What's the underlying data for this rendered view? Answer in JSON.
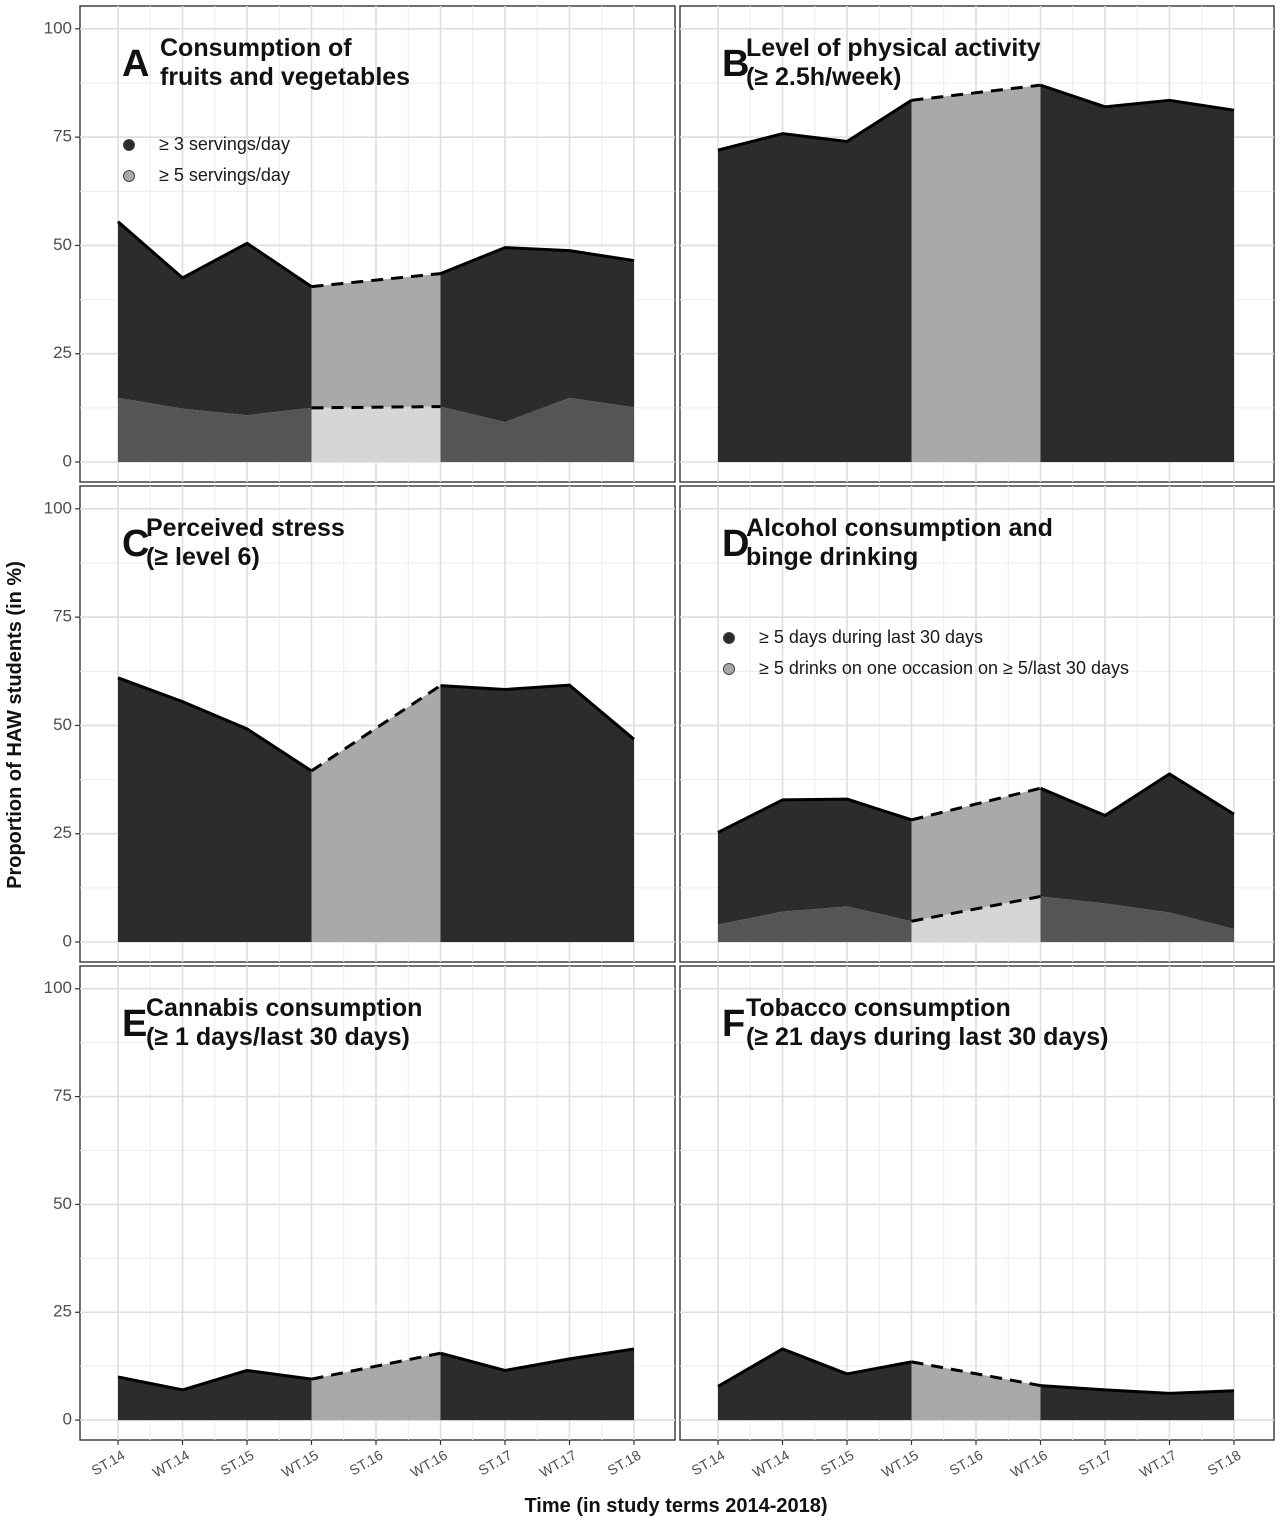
{
  "chart_data": {
    "type": "area",
    "figure": {
      "ylabel": "Proportion of HAW students (in %)",
      "xlabel": "Time (in study terms 2014-2018)",
      "categories": [
        "ST.14",
        "WT.14",
        "ST.15",
        "WT.15",
        "ST.16",
        "WT.16",
        "ST.17",
        "WT.17",
        "ST.18"
      ],
      "ylim": [
        0,
        100
      ],
      "yticks": [
        "0",
        "25",
        "50",
        "75",
        "100"
      ],
      "gap_interval": [
        "WT.15",
        "WT.16"
      ],
      "colors": {
        "dark_area": "#2c2c2c",
        "gap_area": "#a9a9a9",
        "secondary_area": "#555555",
        "secondary_gap_area": "#d6d6d6",
        "line": "#000000",
        "grid": "#dedede"
      }
    },
    "panels": [
      {
        "letter": "A",
        "title_lines": [
          "Consumption of",
          " fruits and vegetables"
        ],
        "legend": [
          "≥ 3 servings/day",
          "≥ 5 servings/day"
        ],
        "series": [
          {
            "name": "≥ 3 servings/day",
            "values": [
              55.5,
              42.5,
              50.5,
              40.5,
              null,
              43.5,
              49.5,
              48.8,
              46.5
            ]
          },
          {
            "name": "≥ 5 servings/day",
            "values": [
              14.8,
              12.3,
              10.8,
              12.5,
              null,
              12.8,
              9.2,
              14.8,
              12.6
            ]
          }
        ]
      },
      {
        "letter": "B",
        "title_lines": [
          "Level of physical activity",
          "(≥ 2.5h/week)"
        ],
        "legend": [],
        "series": [
          {
            "name": "physical activity",
            "values": [
              72,
              75.8,
              74,
              83.5,
              null,
              87,
              82,
              83.5,
              81.2
            ]
          }
        ]
      },
      {
        "letter": "C",
        "title_lines": [
          "Perceived stress",
          "(≥ level 6)"
        ],
        "legend": [],
        "series": [
          {
            "name": "perceived stress",
            "values": [
              61,
              55.5,
              49.2,
              39.5,
              null,
              59.2,
              58.3,
              59.3,
              46.8
            ]
          }
        ]
      },
      {
        "letter": "D",
        "title_lines": [
          "Alcohol consumption and",
          "binge drinking"
        ],
        "legend": [
          "≥ 5 days during last 30 days",
          "≥ 5 drinks on one occasion on ≥ 5/last 30 days"
        ],
        "series": [
          {
            "name": "≥ 5 days during last 30 days",
            "values": [
              25.3,
              32.8,
              33,
              28.2,
              null,
              35.5,
              29.2,
              38.8,
              29.5
            ]
          },
          {
            "name": "≥ 5 drinks on one occasion on ≥ 5/last 30 days",
            "values": [
              4,
              7,
              8.2,
              4.8,
              null,
              10.5,
              8.9,
              6.8,
              3
            ]
          }
        ]
      },
      {
        "letter": "E",
        "title_lines": [
          "Cannabis consumption",
          "(≥ 1 days/last 30 days)"
        ],
        "legend": [],
        "series": [
          {
            "name": "cannabis",
            "values": [
              10,
              7,
              11.5,
              9.5,
              null,
              15.5,
              11.5,
              14.2,
              16.5
            ]
          }
        ]
      },
      {
        "letter": "F",
        "title_lines": [
          "Tobacco consumption",
          "(≥ 21 days during last 30 days)"
        ],
        "legend": [],
        "series": [
          {
            "name": "tobacco",
            "values": [
              7.8,
              16.5,
              10.7,
              13.5,
              null,
              8,
              7,
              6.2,
              6.8
            ]
          }
        ]
      }
    ]
  }
}
